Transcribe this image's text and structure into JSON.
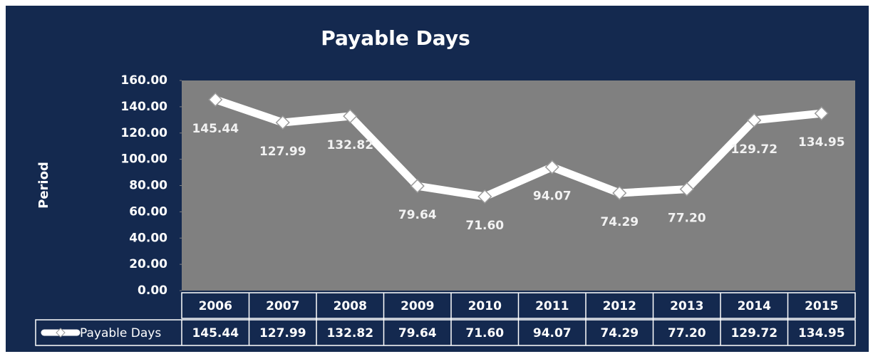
{
  "chart_data": {
    "type": "line",
    "title": "Payable Days",
    "y_label": "Period",
    "categories": [
      "2006",
      "2007",
      "2008",
      "2009",
      "2010",
      "2011",
      "2012",
      "2013",
      "2014",
      "2015"
    ],
    "series": [
      {
        "name": "Payable Days",
        "color": "#ffffff",
        "values": [
          145.44,
          127.99,
          132.82,
          79.64,
          71.6,
          94.07,
          74.29,
          77.2,
          129.72,
          134.95
        ],
        "value_labels": [
          "145.44",
          "127.99",
          "132.82",
          "79.64",
          "71.60",
          "94.07",
          "74.29",
          "77.20",
          "129.72",
          "134.95"
        ]
      }
    ],
    "ylim": [
      0,
      160
    ],
    "yticks": [
      {
        "value": 0,
        "label": "0.00"
      },
      {
        "value": 20,
        "label": "20.00"
      },
      {
        "value": 40,
        "label": "40.00"
      },
      {
        "value": 60,
        "label": "60.00"
      },
      {
        "value": 80,
        "label": "80.00"
      },
      {
        "value": 100,
        "label": "100.00"
      },
      {
        "value": 120,
        "label": "120.00"
      },
      {
        "value": 140,
        "label": "140.00"
      },
      {
        "value": 160,
        "label": "160.00"
      }
    ],
    "data_table": true
  }
}
